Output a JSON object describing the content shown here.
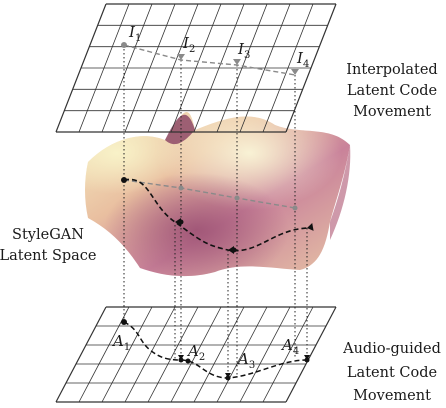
{
  "interpolated": {
    "label_lines": [
      "Interpolated",
      "Latent Code",
      "Movement"
    ],
    "points": [
      {
        "name": "I",
        "sub": "1"
      },
      {
        "name": "I",
        "sub": "2"
      },
      {
        "name": "I",
        "sub": "3"
      },
      {
        "name": "I",
        "sub": "4"
      }
    ]
  },
  "latent_space": {
    "label_lines": [
      "StyleGAN",
      "Latent Space"
    ]
  },
  "audio": {
    "label_lines": [
      "Audio-guided",
      "Latent Code",
      "Movement"
    ],
    "points": [
      {
        "name": "A",
        "sub": "1"
      },
      {
        "name": "A",
        "sub": "2"
      },
      {
        "name": "A",
        "sub": "3"
      },
      {
        "name": "A",
        "sub": "4"
      }
    ]
  },
  "colors": {
    "grid": "#333333",
    "interp_path": "#8a8a8a",
    "audio_path": "#111111",
    "surface_light": "#f6efc2",
    "surface_dark": "#a25a78"
  }
}
